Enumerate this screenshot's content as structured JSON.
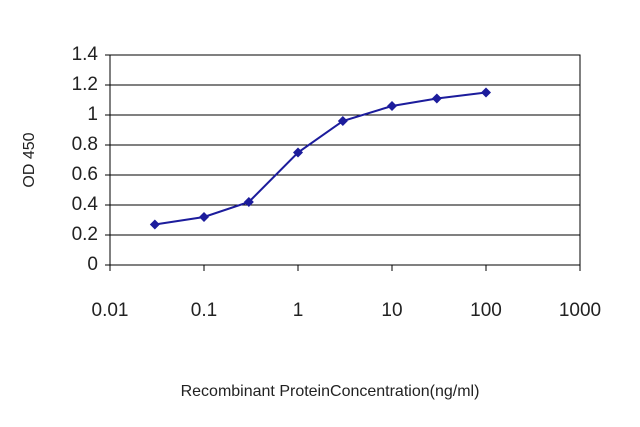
{
  "chart_data": {
    "type": "line",
    "x_label": "Recombinant ProteinConcentration(ng/ml)",
    "y_label": "OD 450",
    "x_scale": "log",
    "grid": true,
    "xlim": [
      0.01,
      1000
    ],
    "xticks": [
      0.01,
      0.1,
      1,
      10,
      100,
      1000
    ],
    "ylim": [
      0,
      1.4
    ],
    "yticks": [
      0,
      0.2,
      0.4,
      0.6,
      0.8,
      1,
      1.2,
      1.4
    ],
    "series": [
      {
        "color": "#1c1c9c",
        "x": [
          0.03,
          0.1,
          0.3,
          1,
          3,
          10,
          30,
          100
        ],
        "values": [
          0.27,
          0.32,
          0.42,
          0.75,
          0.96,
          1.06,
          1.11,
          1.15
        ]
      }
    ]
  }
}
